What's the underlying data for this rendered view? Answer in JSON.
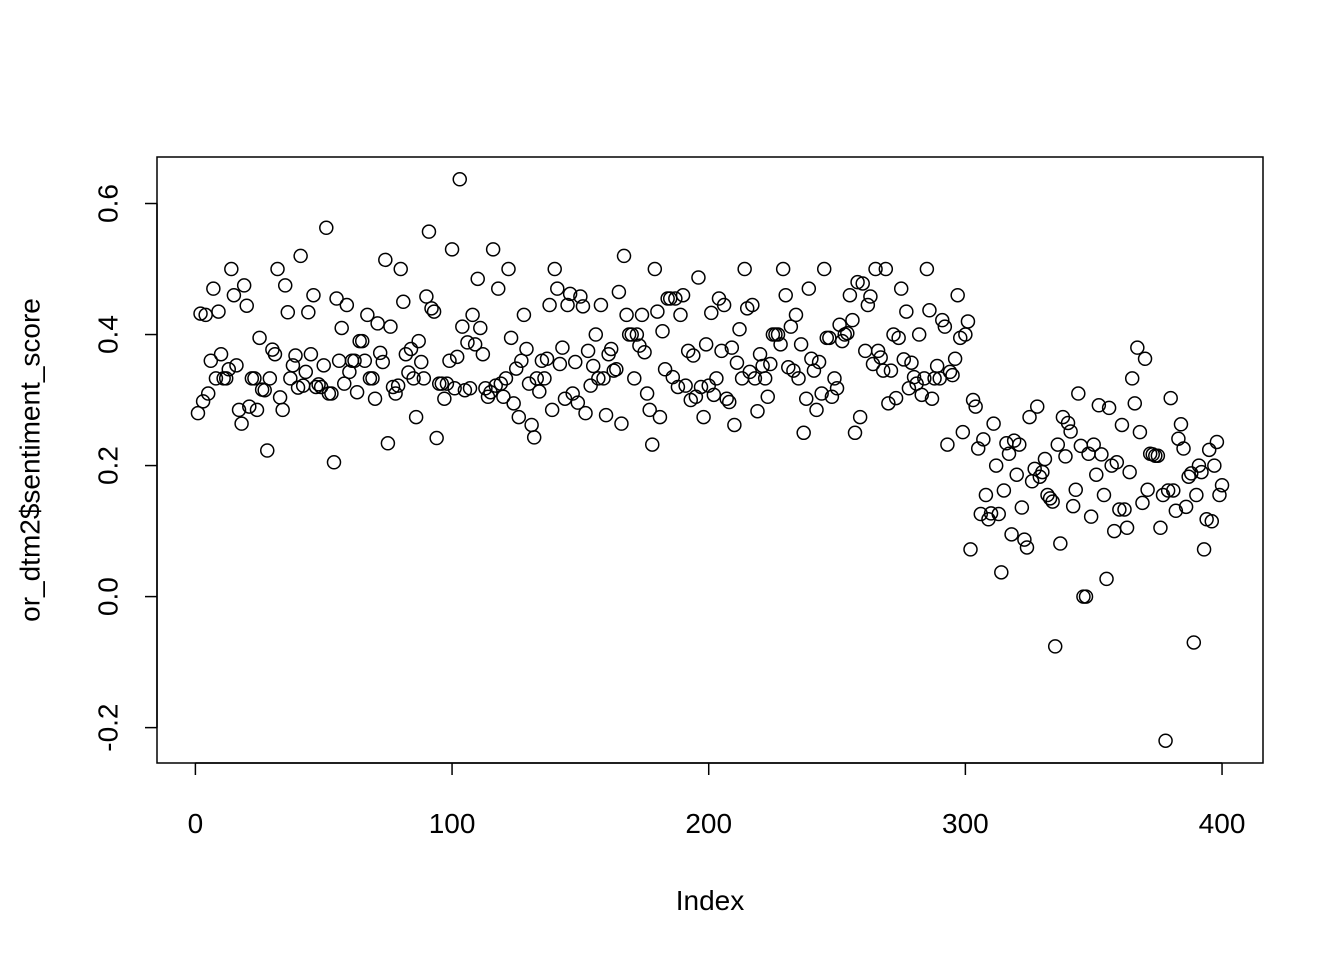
{
  "chart_data": {
    "type": "scatter",
    "xlabel": "Index",
    "ylabel": "or_dtm2$sentiment_score",
    "xlim": [
      -14.96,
      415.96
    ],
    "ylim": [
      -0.254,
      0.671
    ],
    "xticks": [
      0,
      100,
      200,
      300,
      400
    ],
    "yticks": [
      -0.2,
      {
        "value": 0,
        "label": "0.0"
      },
      0.2,
      0.4,
      0.6
    ],
    "color": "#000000",
    "x": [
      1,
      2,
      3,
      4,
      5,
      6,
      7,
      8,
      9,
      10,
      11,
      12,
      13,
      14,
      15,
      16,
      17,
      18,
      19,
      20,
      21,
      22,
      23,
      24,
      25,
      26,
      27,
      28,
      29,
      30,
      31,
      32,
      33,
      34,
      35,
      36,
      37,
      38,
      39,
      40,
      41,
      42,
      43,
      44,
      45,
      46,
      47,
      48,
      49,
      50,
      51,
      52,
      53,
      54,
      55,
      56,
      57,
      58,
      59,
      60,
      61,
      62,
      63,
      64,
      65,
      66,
      67,
      68,
      69,
      70,
      71,
      72,
      73,
      74,
      75,
      76,
      77,
      78,
      79,
      80,
      81,
      82,
      83,
      84,
      85,
      86,
      87,
      88,
      89,
      90,
      91,
      92,
      93,
      94,
      95,
      96,
      97,
      98,
      99,
      100,
      101,
      102,
      103,
      104,
      105,
      106,
      107,
      108,
      109,
      110,
      111,
      112,
      113,
      114,
      115,
      116,
      117,
      118,
      119,
      120,
      121,
      122,
      123,
      124,
      125,
      126,
      127,
      128,
      129,
      130,
      131,
      132,
      133,
      134,
      135,
      136,
      137,
      138,
      139,
      140,
      141,
      142,
      143,
      144,
      145,
      146,
      147,
      148,
      149,
      150,
      151,
      152,
      153,
      154,
      155,
      156,
      157,
      158,
      159,
      160,
      161,
      162,
      163,
      164,
      165,
      166,
      167,
      168,
      169,
      170,
      171,
      172,
      173,
      174,
      175,
      176,
      177,
      178,
      179,
      180,
      181,
      182,
      183,
      184,
      185,
      186,
      187,
      188,
      189,
      190,
      191,
      192,
      193,
      194,
      195,
      196,
      197,
      198,
      199,
      200,
      201,
      202,
      203,
      204,
      205,
      206,
      207,
      208,
      209,
      210,
      211,
      212,
      213,
      214,
      215,
      216,
      217,
      218,
      219,
      220,
      221,
      222,
      223,
      224,
      225,
      226,
      227,
      228,
      229,
      230,
      231,
      232,
      233,
      234,
      235,
      236,
      237,
      238,
      239,
      240,
      241,
      242,
      243,
      244,
      245,
      246,
      247,
      248,
      249,
      250,
      251,
      252,
      253,
      254,
      255,
      256,
      257,
      258,
      259,
      260,
      261,
      262,
      263,
      264,
      265,
      266,
      267,
      268,
      269,
      270,
      271,
      272,
      273,
      274,
      275,
      276,
      277,
      278,
      279,
      280,
      281,
      282,
      283,
      284,
      285,
      286,
      287,
      288,
      289,
      290,
      291,
      292,
      293,
      294,
      295,
      296,
      297,
      298,
      299,
      300,
      301,
      302,
      303,
      304,
      305,
      306,
      307,
      308,
      309,
      310,
      311,
      312,
      313,
      314,
      315,
      316,
      317,
      318,
      319,
      320,
      321,
      322,
      323,
      324,
      325,
      326,
      327,
      328,
      329,
      330,
      331,
      332,
      333,
      334,
      335,
      336,
      337,
      338,
      339,
      340,
      341,
      342,
      343,
      344,
      345,
      346,
      347,
      348,
      349,
      350,
      351,
      352,
      353,
      354,
      355,
      356,
      357,
      358,
      359,
      360,
      361,
      362,
      363,
      364,
      365,
      366,
      367,
      368,
      369,
      370,
      371,
      372,
      373,
      374,
      375,
      376,
      377,
      378,
      379,
      380,
      381,
      382,
      383,
      384,
      385,
      386,
      387,
      388,
      389,
      390,
      391,
      392,
      393,
      394,
      395,
      396,
      397,
      398,
      399,
      400
    ],
    "values": [
      0.28,
      0.432,
      0.298,
      0.43,
      0.31,
      0.36,
      0.47,
      0.333,
      0.435,
      0.37,
      0.333,
      0.333,
      0.347,
      0.5,
      0.46,
      0.353,
      0.285,
      0.264,
      0.475,
      0.444,
      0.29,
      0.333,
      0.333,
      0.285,
      0.395,
      0.316,
      0.315,
      0.223,
      0.333,
      0.377,
      0.37,
      0.5,
      0.304,
      0.285,
      0.475,
      0.434,
      0.333,
      0.353,
      0.368,
      0.319,
      0.52,
      0.322,
      0.343,
      0.434,
      0.37,
      0.46,
      0.32,
      0.324,
      0.32,
      0.353,
      0.563,
      0.31,
      0.31,
      0.205,
      0.455,
      0.36,
      0.41,
      0.325,
      0.445,
      0.343,
      0.36,
      0.36,
      0.312,
      0.39,
      0.39,
      0.36,
      0.43,
      0.333,
      0.333,
      0.302,
      0.417,
      0.372,
      0.358,
      0.514,
      0.234,
      0.412,
      0.32,
      0.31,
      0.322,
      0.5,
      0.45,
      0.37,
      0.342,
      0.378,
      0.333,
      0.274,
      0.39,
      0.358,
      0.333,
      0.458,
      0.557,
      0.44,
      0.435,
      0.242,
      0.325,
      0.325,
      0.302,
      0.325,
      0.36,
      0.53,
      0.318,
      0.366,
      0.637,
      0.412,
      0.315,
      0.388,
      0.318,
      0.43,
      0.385,
      0.485,
      0.41,
      0.37,
      0.318,
      0.305,
      0.312,
      0.53,
      0.322,
      0.47,
      0.325,
      0.305,
      0.333,
      0.5,
      0.395,
      0.295,
      0.348,
      0.274,
      0.36,
      0.43,
      0.378,
      0.325,
      0.262,
      0.243,
      0.333,
      0.313,
      0.36,
      0.333,
      0.363,
      0.445,
      0.285,
      0.5,
      0.47,
      0.355,
      0.38,
      0.302,
      0.445,
      0.462,
      0.31,
      0.358,
      0.296,
      0.458,
      0.443,
      0.28,
      0.375,
      0.322,
      0.352,
      0.4,
      0.333,
      0.445,
      0.333,
      0.277,
      0.37,
      0.378,
      0.345,
      0.347,
      0.465,
      0.264,
      0.52,
      0.43,
      0.4,
      0.4,
      0.333,
      0.4,
      0.383,
      0.43,
      0.373,
      0.31,
      0.285,
      0.232,
      0.5,
      0.435,
      0.274,
      0.405,
      0.347,
      0.455,
      0.455,
      0.335,
      0.455,
      0.32,
      0.43,
      0.46,
      0.322,
      0.375,
      0.3,
      0.368,
      0.305,
      0.487,
      0.32,
      0.274,
      0.385,
      0.322,
      0.433,
      0.308,
      0.333,
      0.455,
      0.375,
      0.445,
      0.302,
      0.297,
      0.38,
      0.262,
      0.357,
      0.408,
      0.333,
      0.5,
      0.44,
      0.343,
      0.445,
      0.333,
      0.283,
      0.37,
      0.352,
      0.333,
      0.305,
      0.355,
      0.4,
      0.4,
      0.4,
      0.385,
      0.5,
      0.46,
      0.35,
      0.412,
      0.345,
      0.43,
      0.333,
      0.385,
      0.25,
      0.302,
      0.47,
      0.363,
      0.345,
      0.285,
      0.358,
      0.31,
      0.5,
      0.395,
      0.395,
      0.305,
      0.333,
      0.318,
      0.415,
      0.39,
      0.4,
      0.402,
      0.46,
      0.422,
      0.25,
      0.48,
      0.274,
      0.478,
      0.375,
      0.445,
      0.458,
      0.355,
      0.5,
      0.375,
      0.365,
      0.345,
      0.5,
      0.295,
      0.345,
      0.4,
      0.303,
      0.395,
      0.47,
      0.362,
      0.435,
      0.318,
      0.357,
      0.335,
      0.325,
      0.4,
      0.308,
      0.333,
      0.5,
      0.437,
      0.302,
      0.333,
      0.352,
      0.333,
      0.422,
      0.412,
      0.232,
      0.343,
      0.338,
      0.363,
      0.46,
      0.395,
      0.251,
      0.4,
      0.42,
      0.072,
      0.3,
      0.29,
      0.226,
      0.126,
      0.24,
      0.155,
      0.118,
      0.127,
      0.264,
      0.2,
      0.126,
      0.037,
      0.162,
      0.234,
      0.218,
      0.095,
      0.238,
      0.186,
      0.232,
      0.136,
      0.087,
      0.075,
      0.274,
      0.176,
      0.195,
      0.29,
      0.183,
      0.19,
      0.21,
      0.155,
      0.15,
      0.145,
      -0.076,
      0.232,
      0.081,
      0.274,
      0.214,
      0.265,
      0.252,
      0.138,
      0.163,
      0.31,
      0.23,
      0,
      0,
      0.218,
      0.122,
      0.232,
      0.186,
      0.292,
      0.217,
      0.155,
      0.027,
      0.288,
      0.2,
      0.1,
      0.205,
      0.133,
      0.262,
      0.133,
      0.105,
      0.19,
      0.333,
      0.295,
      0.38,
      0.251,
      0.143,
      0.363,
      0.163,
      0.218,
      0.217,
      0.215,
      0.215,
      0.105,
      0.155,
      -0.22,
      0.162,
      0.303,
      0.162,
      0.131,
      0.241,
      0.263,
      0.226,
      0.137,
      0.183,
      0.188,
      -0.07,
      0.155,
      0.2,
      0.19,
      0.072,
      0.118,
      0.224,
      0.115,
      0.2,
      0.236,
      0.155,
      0.17
    ]
  }
}
